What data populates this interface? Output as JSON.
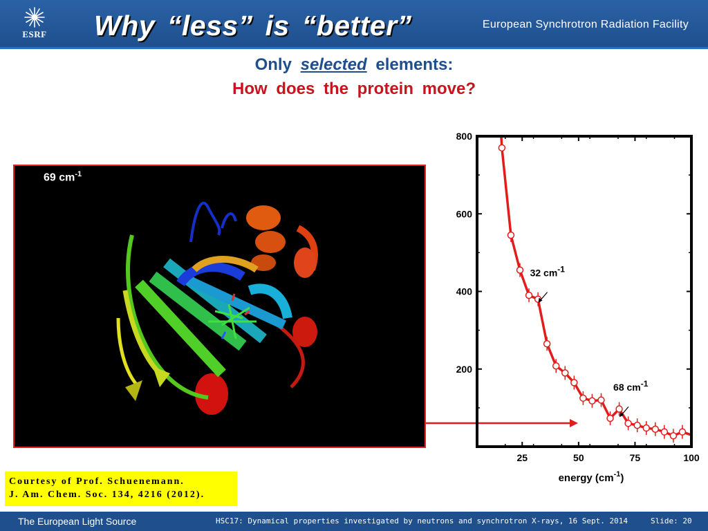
{
  "header": {
    "logo_text": "ESRF",
    "title": "Why “less” is “better”",
    "facility": "European Synchrotron Radiation Facility"
  },
  "subtitle": {
    "prefix": "Only",
    "emphasis": "selected",
    "suffix": "elements:",
    "question": "How does the protein move?"
  },
  "protein_image": {
    "label_value": "69 cm",
    "label_exp": "-1"
  },
  "courtesy": {
    "line1": "Courtesy of Prof. Schuenemann.",
    "line2": "J. Am. Chem. Soc. 134, 4216 (2012)."
  },
  "footer": {
    "left": "The European Light Source",
    "middle": "HSC17: Dynamical properties investigated by neutrons and synchrotron X-rays, 16 Sept. 2014",
    "slide": "Slide: 20"
  },
  "colors": {
    "header_blue": "#1f4f8d",
    "accent_red": "#e31b1b",
    "subtitle_blue": "#1f4e8c",
    "question_red": "#c8141e",
    "courtesy_yellow": "#ffff00"
  },
  "chart_data": {
    "type": "scatter",
    "title": "",
    "xlabel": "energy (cm",
    "xlabel_exp": "-1",
    "xlabel_close": ")",
    "ylabel": "",
    "xlim": [
      5,
      100
    ],
    "ylim": [
      0,
      800
    ],
    "xticks": [
      25,
      50,
      75,
      100
    ],
    "yticks": [
      200,
      400,
      600,
      800
    ],
    "grid": false,
    "legend": "none",
    "series": [
      {
        "color": "#e31b1b",
        "x": [
          16,
          20,
          24,
          28,
          32,
          36,
          40,
          44,
          48,
          52,
          56,
          60,
          64,
          68,
          72,
          76,
          80,
          84,
          88,
          92,
          96
        ],
        "y": [
          770,
          545,
          455,
          390,
          380,
          265,
          208,
          190,
          165,
          125,
          118,
          120,
          73,
          97,
          60,
          55,
          48,
          45,
          38,
          28,
          38
        ]
      }
    ],
    "annotations": [
      {
        "text": "32 cm",
        "exp": "-1",
        "x": 30,
        "y": 430
      },
      {
        "text": "68 cm",
        "exp": "-1",
        "x": 66,
        "y": 135
      }
    ]
  }
}
